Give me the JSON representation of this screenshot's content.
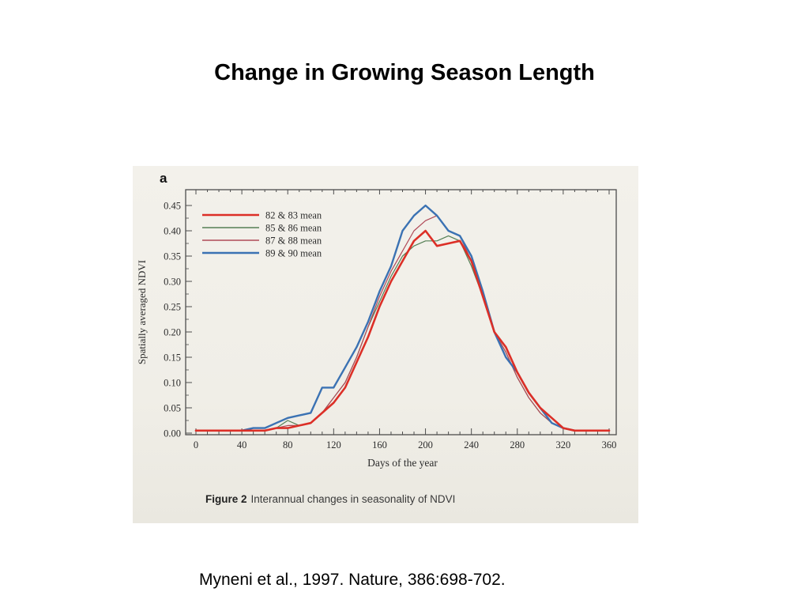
{
  "slide": {
    "title": "Change in Growing Season Length",
    "citation": "Myneni et al., 1997. Nature, 386:698-702."
  },
  "figure": {
    "panel_label": "a",
    "caption_label": "Figure 2",
    "caption_text": "Interannual changes in seasonality of NDVI"
  },
  "chart_data": {
    "type": "line",
    "title": "",
    "xlabel": "Days of the year",
    "ylabel": "Spatially averaged NDVI",
    "xlim": [
      0,
      360
    ],
    "ylim": [
      0,
      0.45
    ],
    "grid": false,
    "legend_position": "upper left",
    "x_ticks": [
      0,
      40,
      80,
      120,
      160,
      200,
      240,
      280,
      320,
      360
    ],
    "y_ticks": [
      0.0,
      0.05,
      0.1,
      0.15,
      0.2,
      0.25,
      0.3,
      0.35,
      0.4,
      0.45
    ],
    "x": [
      0,
      10,
      20,
      30,
      40,
      50,
      60,
      70,
      80,
      90,
      100,
      110,
      120,
      130,
      140,
      150,
      160,
      170,
      180,
      190,
      200,
      210,
      220,
      230,
      240,
      250,
      260,
      270,
      280,
      290,
      300,
      310,
      320,
      330,
      340,
      350,
      360
    ],
    "series": [
      {
        "name": "82 & 83 mean",
        "color": "#dc2f27",
        "width": 2.6,
        "values": [
          0.005,
          0.005,
          0.005,
          0.005,
          0.005,
          0.005,
          0.005,
          0.01,
          0.01,
          0.015,
          0.02,
          0.04,
          0.06,
          0.09,
          0.14,
          0.19,
          0.25,
          0.3,
          0.34,
          0.38,
          0.4,
          0.37,
          0.375,
          0.38,
          0.34,
          0.27,
          0.2,
          0.17,
          0.12,
          0.08,
          0.05,
          0.03,
          0.01,
          0.005,
          0.005,
          0.005,
          0.005
        ]
      },
      {
        "name": "85 & 86 mean",
        "color": "#557f55",
        "width": 1.2,
        "values": [
          0.005,
          0.005,
          0.005,
          0.005,
          0.005,
          0.005,
          0.005,
          0.01,
          0.025,
          0.015,
          0.02,
          0.04,
          0.07,
          0.1,
          0.15,
          0.21,
          0.26,
          0.31,
          0.35,
          0.37,
          0.38,
          0.38,
          0.39,
          0.38,
          0.33,
          0.27,
          0.2,
          0.16,
          0.11,
          0.07,
          0.04,
          0.02,
          0.01,
          0.005,
          0.005,
          0.005,
          0.005
        ]
      },
      {
        "name": "87 & 88 mean",
        "color": "#b04a58",
        "width": 1.2,
        "values": [
          0.005,
          0.005,
          0.005,
          0.005,
          0.005,
          0.005,
          0.005,
          0.01,
          0.015,
          0.015,
          0.02,
          0.04,
          0.07,
          0.1,
          0.15,
          0.21,
          0.27,
          0.32,
          0.36,
          0.4,
          0.42,
          0.43,
          0.4,
          0.39,
          0.34,
          0.27,
          0.2,
          0.16,
          0.11,
          0.07,
          0.04,
          0.02,
          0.01,
          0.005,
          0.005,
          0.005,
          0.005
        ]
      },
      {
        "name": "89 & 90 mean",
        "color": "#3b72b3",
        "width": 2.4,
        "values": [
          0.005,
          0.005,
          0.005,
          0.005,
          0.005,
          0.01,
          0.01,
          0.02,
          0.03,
          0.035,
          0.04,
          0.09,
          0.09,
          0.13,
          0.17,
          0.22,
          0.28,
          0.33,
          0.4,
          0.43,
          0.45,
          0.43,
          0.4,
          0.39,
          0.35,
          0.28,
          0.2,
          0.15,
          0.12,
          0.08,
          0.05,
          0.02,
          0.01,
          0.005,
          0.005,
          0.005,
          0.005
        ]
      }
    ]
  }
}
